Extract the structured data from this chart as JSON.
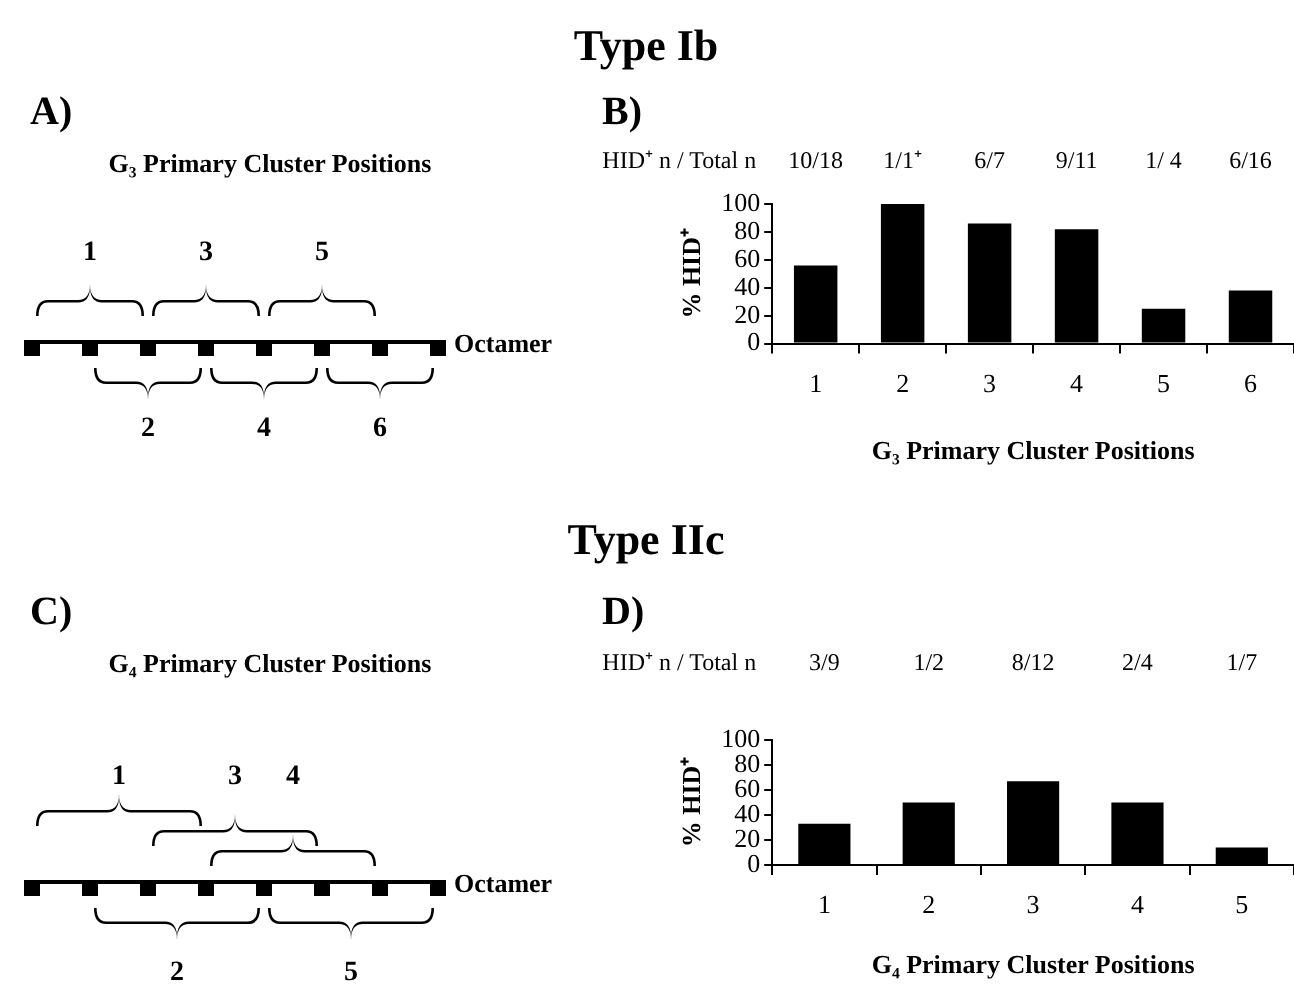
{
  "chart_data": [
    {
      "type": "other",
      "title": "G₃ Primary Cluster Positions",
      "annotations": [
        "Type Ib",
        "A)",
        "1",
        "2",
        "3",
        "4",
        "5",
        "6",
        "Octamer"
      ]
    },
    {
      "type": "bar",
      "xlabel": "G₃ Primary Cluster Positions",
      "ylabel": "% HID⁺",
      "categories": [
        "1",
        "2",
        "3",
        "4",
        "5",
        "6"
      ],
      "values": [
        56,
        100,
        86,
        82,
        25,
        38
      ],
      "color": "#000000",
      "ylim": [
        0,
        100
      ],
      "yticks": [
        0,
        20,
        40,
        60,
        80,
        100
      ],
      "grid": false,
      "legend": false,
      "annotations": [
        "B)",
        "HID⁺ n / Total n",
        "10/18",
        "1/1⁺",
        "6/7",
        "9/11",
        "1/ 4",
        "6/16"
      ]
    },
    {
      "type": "other",
      "title": "G₄ Primary Cluster Positions",
      "annotations": [
        "Type IIc",
        "C)",
        "1",
        "2",
        "3",
        "4",
        "5",
        "Octamer"
      ]
    },
    {
      "type": "bar",
      "xlabel": "G₄ Primary Cluster Positions",
      "ylabel": "% HID⁺",
      "categories": [
        "1",
        "2",
        "3",
        "4",
        "5"
      ],
      "values": [
        33,
        50,
        67,
        50,
        14
      ],
      "color": "#000000",
      "ylim": [
        0,
        100
      ],
      "yticks": [
        0,
        20,
        40,
        60,
        80,
        100
      ],
      "grid": false,
      "legend": false,
      "annotations": [
        "D)",
        "HID⁺ n / Total n",
        "3/9",
        "1/2",
        "8/12",
        "2/4",
        "1/7"
      ]
    }
  ]
}
